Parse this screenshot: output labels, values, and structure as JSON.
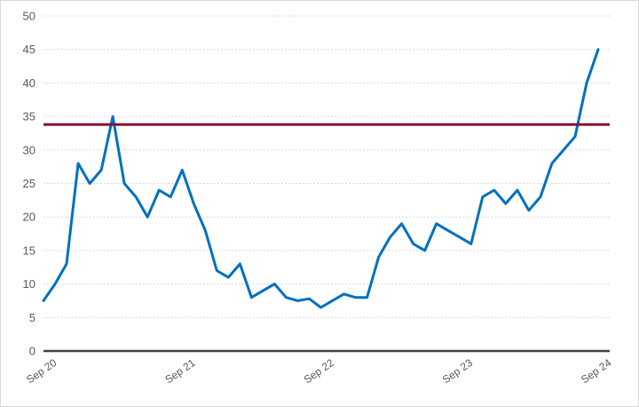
{
  "chart_data": {
    "type": "line",
    "title": "",
    "xlabel": "",
    "ylabel": "",
    "ylim": [
      0,
      50
    ],
    "yticks": [
      0,
      5,
      10,
      15,
      20,
      25,
      30,
      35,
      40,
      45,
      50
    ],
    "xlim": [
      "2020-09",
      "2024-09"
    ],
    "xticks": [
      "Sep 20",
      "Sep 21",
      "Sep 22",
      "Sep 23",
      "Sep 24"
    ],
    "grid": "horizontal-dashed",
    "legend": "none",
    "colors": {
      "series": "#0070C0",
      "reference": "#7B1430",
      "axis": "#404040",
      "grid": "#d9d9d9"
    },
    "reference_line": {
      "y": 33.8
    },
    "series": [
      {
        "x": [
          "2020-09",
          "2020-10",
          "2020-11",
          "2020-12",
          "2021-01",
          "2021-02",
          "2021-03",
          "2021-04",
          "2021-05",
          "2021-06",
          "2021-07",
          "2021-08",
          "2021-09",
          "2021-10",
          "2021-11",
          "2021-12",
          "2022-01",
          "2022-02",
          "2022-03",
          "2022-04",
          "2022-05",
          "2022-06",
          "2022-07",
          "2022-08",
          "2022-09",
          "2022-10",
          "2022-11",
          "2022-12",
          "2023-01",
          "2023-02",
          "2023-03",
          "2023-04",
          "2023-05",
          "2023-06",
          "2023-07",
          "2023-08",
          "2023-09",
          "2023-10",
          "2023-11",
          "2023-12",
          "2024-01",
          "2024-02",
          "2024-03",
          "2024-04",
          "2024-05",
          "2024-06",
          "2024-07",
          "2024-08",
          "2024-09"
        ],
        "values": [
          7.5,
          10,
          13,
          28,
          25,
          27,
          35,
          25,
          23,
          20,
          24,
          23,
          27,
          22,
          18,
          12,
          11,
          13,
          8,
          9,
          10,
          8,
          7.5,
          7.8,
          6.5,
          7.5,
          8.5,
          8,
          8,
          14,
          17,
          19,
          16,
          15,
          19,
          18,
          17,
          16,
          23,
          24,
          22,
          24,
          21,
          23,
          28,
          30,
          32,
          40,
          45
        ]
      }
    ]
  }
}
